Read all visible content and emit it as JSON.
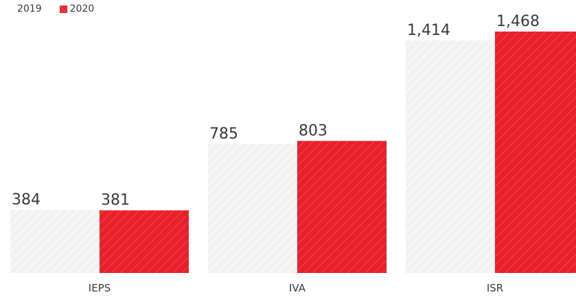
{
  "chart_data": {
    "type": "bar",
    "categories": [
      "IEPS",
      "IVA",
      "ISR"
    ],
    "series": [
      {
        "name": "2019",
        "values": [
          384,
          785,
          1414
        ],
        "labels": [
          "384",
          "785",
          "1,414"
        ],
        "color": "#ececec"
      },
      {
        "name": "2020",
        "values": [
          381,
          803,
          1468
        ],
        "labels": [
          "381",
          "803",
          "1,468"
        ],
        "color": "#e8202a"
      }
    ],
    "ylim": [
      0,
      1468
    ],
    "grid": false,
    "legend_position": "top-left",
    "title": "",
    "xlabel": "",
    "ylabel": ""
  }
}
